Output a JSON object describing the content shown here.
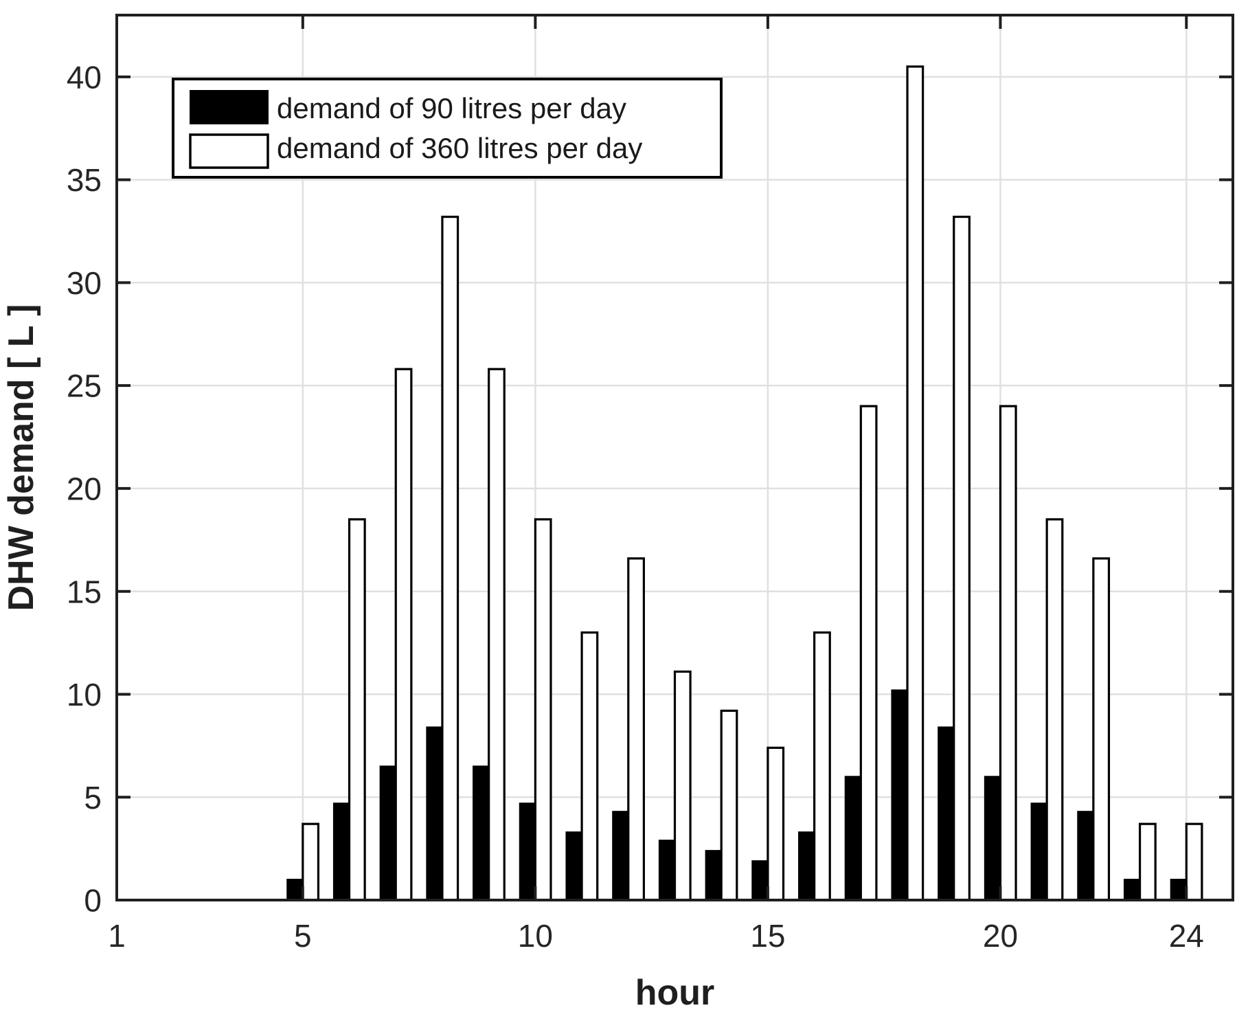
{
  "chart_data": {
    "type": "bar",
    "title": "",
    "xlabel": "hour",
    "ylabel": "DHW demand [ L ]",
    "categories": [
      1,
      2,
      3,
      4,
      5,
      6,
      7,
      8,
      9,
      10,
      11,
      12,
      13,
      14,
      15,
      16,
      17,
      18,
      19,
      20,
      21,
      22,
      23,
      24
    ],
    "series": [
      {
        "name": "demand of 90 litres per day",
        "swatch": "filled-black",
        "values": [
          0,
          0,
          0,
          0,
          1.0,
          4.7,
          6.5,
          8.4,
          6.5,
          4.7,
          3.3,
          4.3,
          2.9,
          2.4,
          1.9,
          3.3,
          6.0,
          10.2,
          8.4,
          6.0,
          4.7,
          4.3,
          1.0,
          1.0
        ]
      },
      {
        "name": "demand of 360 litres per day",
        "swatch": "outlined-white",
        "values": [
          0,
          0,
          0,
          0,
          3.7,
          18.5,
          25.8,
          33.2,
          25.8,
          18.5,
          13.0,
          16.6,
          11.1,
          9.2,
          7.4,
          13.0,
          24.0,
          40.5,
          33.2,
          24.0,
          18.5,
          16.6,
          3.7,
          3.7
        ]
      }
    ],
    "xlim": [
      1,
      25
    ],
    "ylim": [
      0,
      43
    ],
    "x_ticks": [
      1,
      5,
      10,
      15,
      20,
      24
    ],
    "y_ticks": [
      0,
      5,
      10,
      15,
      20,
      25,
      30,
      35,
      40
    ],
    "grid": true,
    "legend_position": "top-left"
  },
  "styles": {
    "background": "#ffffff",
    "bar_fill_90": "#000000",
    "bar_fill_360": "#ffffff",
    "bar_stroke": "#000000",
    "axis_color": "#1f1f1f",
    "tick_label_color": "#262626",
    "axis_label_color": "#1f1f1f",
    "grid_color": "#e0e0e0",
    "legend_border_color": "#000000",
    "legend_bg": "#ffffff",
    "legend_text_color": "#1a1a1a"
  }
}
